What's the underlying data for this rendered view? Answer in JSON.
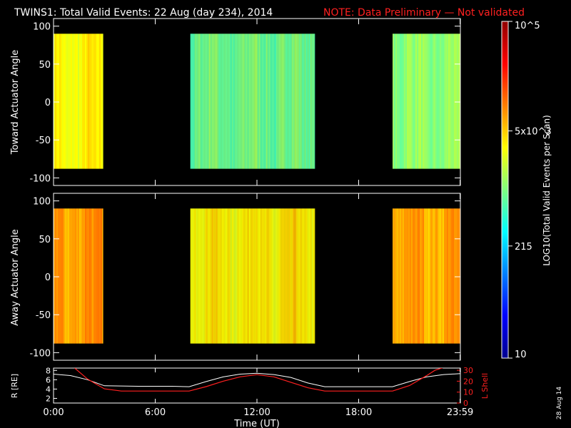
{
  "header": {
    "title": "TWINS1: Total Valid Events: 22 Aug (day 234), 2014",
    "note": "NOTE: Data Preliminary — Not validated",
    "note_color": "#ff2020"
  },
  "side_stamp": "28 Aug 14",
  "colors": {
    "background": "#000000",
    "axes": "#ffffff",
    "l_shell": "#ff2020",
    "r_line": "#ffffff"
  },
  "chart_data": [
    {
      "type": "heatmap",
      "panel": "top",
      "ylabel": "Toward Actuator Angle",
      "ylim": [
        -110,
        110
      ],
      "yticks": [
        "100",
        "50",
        "0",
        "-50",
        "-100"
      ],
      "xlim_hours": [
        0,
        24
      ],
      "angle_range": [
        -88,
        90
      ],
      "data_intervals_hours": [
        [
          0,
          2.93
        ],
        [
          8.07,
          15.42
        ],
        [
          20.0,
          24
        ]
      ],
      "interval_levels_log10": [
        3.5,
        2.95,
        3.05
      ],
      "interval_labels": [
        "green-yellow",
        "blue",
        "cyan"
      ]
    },
    {
      "type": "heatmap",
      "panel": "middle",
      "ylabel": "Away Actuator Angle",
      "ylim": [
        -110,
        110
      ],
      "yticks": [
        "100",
        "50",
        "0",
        "-50",
        "-100"
      ],
      "xlim_hours": [
        0,
        24
      ],
      "angle_range": [
        -88,
        90
      ],
      "data_intervals_hours": [
        [
          0,
          2.93
        ],
        [
          8.07,
          15.42
        ],
        [
          20.0,
          24
        ]
      ],
      "interval_levels_log10": [
        3.9,
        3.55,
        3.85
      ],
      "interval_labels": [
        "yellow-orange",
        "green-yellow",
        "yellow"
      ]
    },
    {
      "type": "line",
      "panel": "bottom",
      "ylabel_left": "R [RE]",
      "ylabel_right": "L Shell",
      "left_ylim": [
        1,
        8.5
      ],
      "left_yticks": [
        "8",
        "6",
        "4",
        "2"
      ],
      "right_ylim": [
        0,
        32
      ],
      "right_yticks": [
        "30",
        "20",
        "10",
        "0"
      ],
      "xlabel": "Time (UT)",
      "xticks": [
        "0:00",
        "6:00",
        "12:00",
        "18:00",
        "23:59"
      ],
      "xtick_hours": [
        0,
        6,
        12,
        18,
        23.983
      ],
      "series": [
        {
          "name": "R [RE]",
          "x": [
            0,
            1,
            2,
            3,
            5,
            7,
            8,
            9,
            10,
            11,
            12,
            13,
            14,
            15,
            16,
            18,
            20,
            21,
            22,
            23,
            24
          ],
          "values": [
            7.2,
            6.9,
            6.0,
            4.7,
            4.6,
            4.6,
            4.5,
            5.6,
            6.6,
            7.2,
            7.4,
            7.1,
            6.5,
            5.3,
            4.5,
            4.5,
            4.5,
            5.6,
            6.6,
            7.1,
            7.3
          ]
        },
        {
          "name": "L Shell",
          "x": [
            1.25,
            2,
            3,
            4,
            6,
            8,
            9,
            10,
            11,
            12,
            13,
            14,
            15,
            16,
            18,
            20,
            21,
            22,
            22.5,
            23.1
          ],
          "values": [
            32,
            22,
            13,
            11,
            11,
            11,
            15,
            20,
            24,
            26,
            24,
            19,
            14,
            11,
            11,
            11,
            16,
            25,
            30,
            33
          ]
        }
      ]
    },
    {
      "type": "heatmap",
      "panel": "colorbar",
      "label": "LOG10(Total Valid Events per Scan)",
      "scale": "log",
      "ticks": [
        {
          "label": "10",
          "log_value": 1.0
        },
        {
          "label": "215",
          "log_value": 2.332
        },
        {
          "label": "5x10^3",
          "log_value": 3.699
        },
        {
          "label": "10^5",
          "log_value": 5.0
        }
      ],
      "range_log10": [
        1,
        5
      ]
    }
  ]
}
